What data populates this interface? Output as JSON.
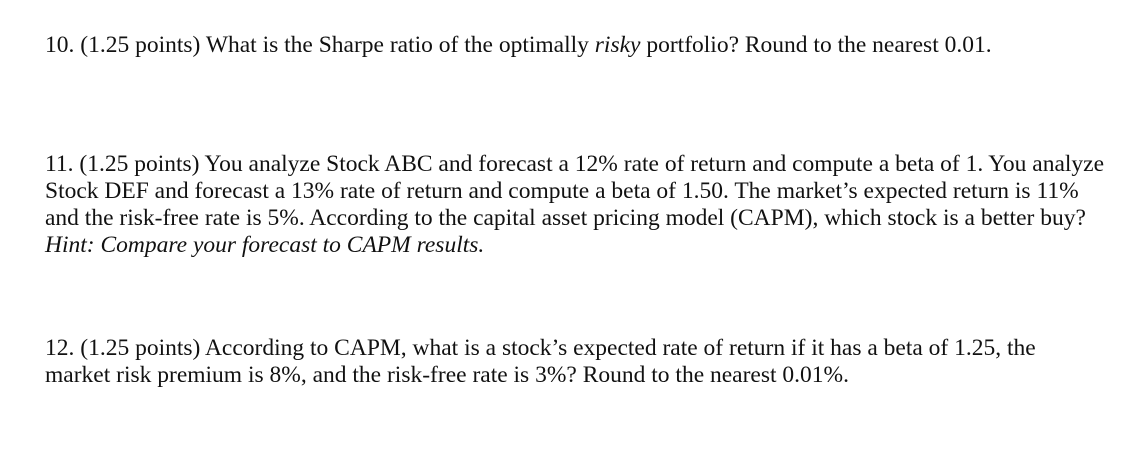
{
  "questions": [
    {
      "number": "10.",
      "points": "(1.25 points)",
      "text_before": "What is the Sharpe ratio of the optimally",
      "italic": "risky",
      "text_after": "portfolio? Round to the nearest 0.01."
    },
    {
      "number": "11.",
      "points": "(1.25 points)",
      "text": "You analyze Stock ABC and forecast a 12% rate of return and compute a beta of 1. You analyze Stock DEF and forecast a 13% rate of return and compute a beta of 1.50. The market’s expected return is 11% and the risk-free rate is 5%. According to the capital asset pricing model (CAPM), which stock is a better buy?",
      "hint": "Hint: Compare your forecast to CAPM results."
    },
    {
      "number": "12.",
      "points": "(1.25 points)",
      "text": "According to CAPM, what is a stock’s expected rate of return if it has a beta of 1.25, the market risk premium is 8%, and the risk-free rate is 3%? Round to the nearest 0.01%."
    }
  ]
}
